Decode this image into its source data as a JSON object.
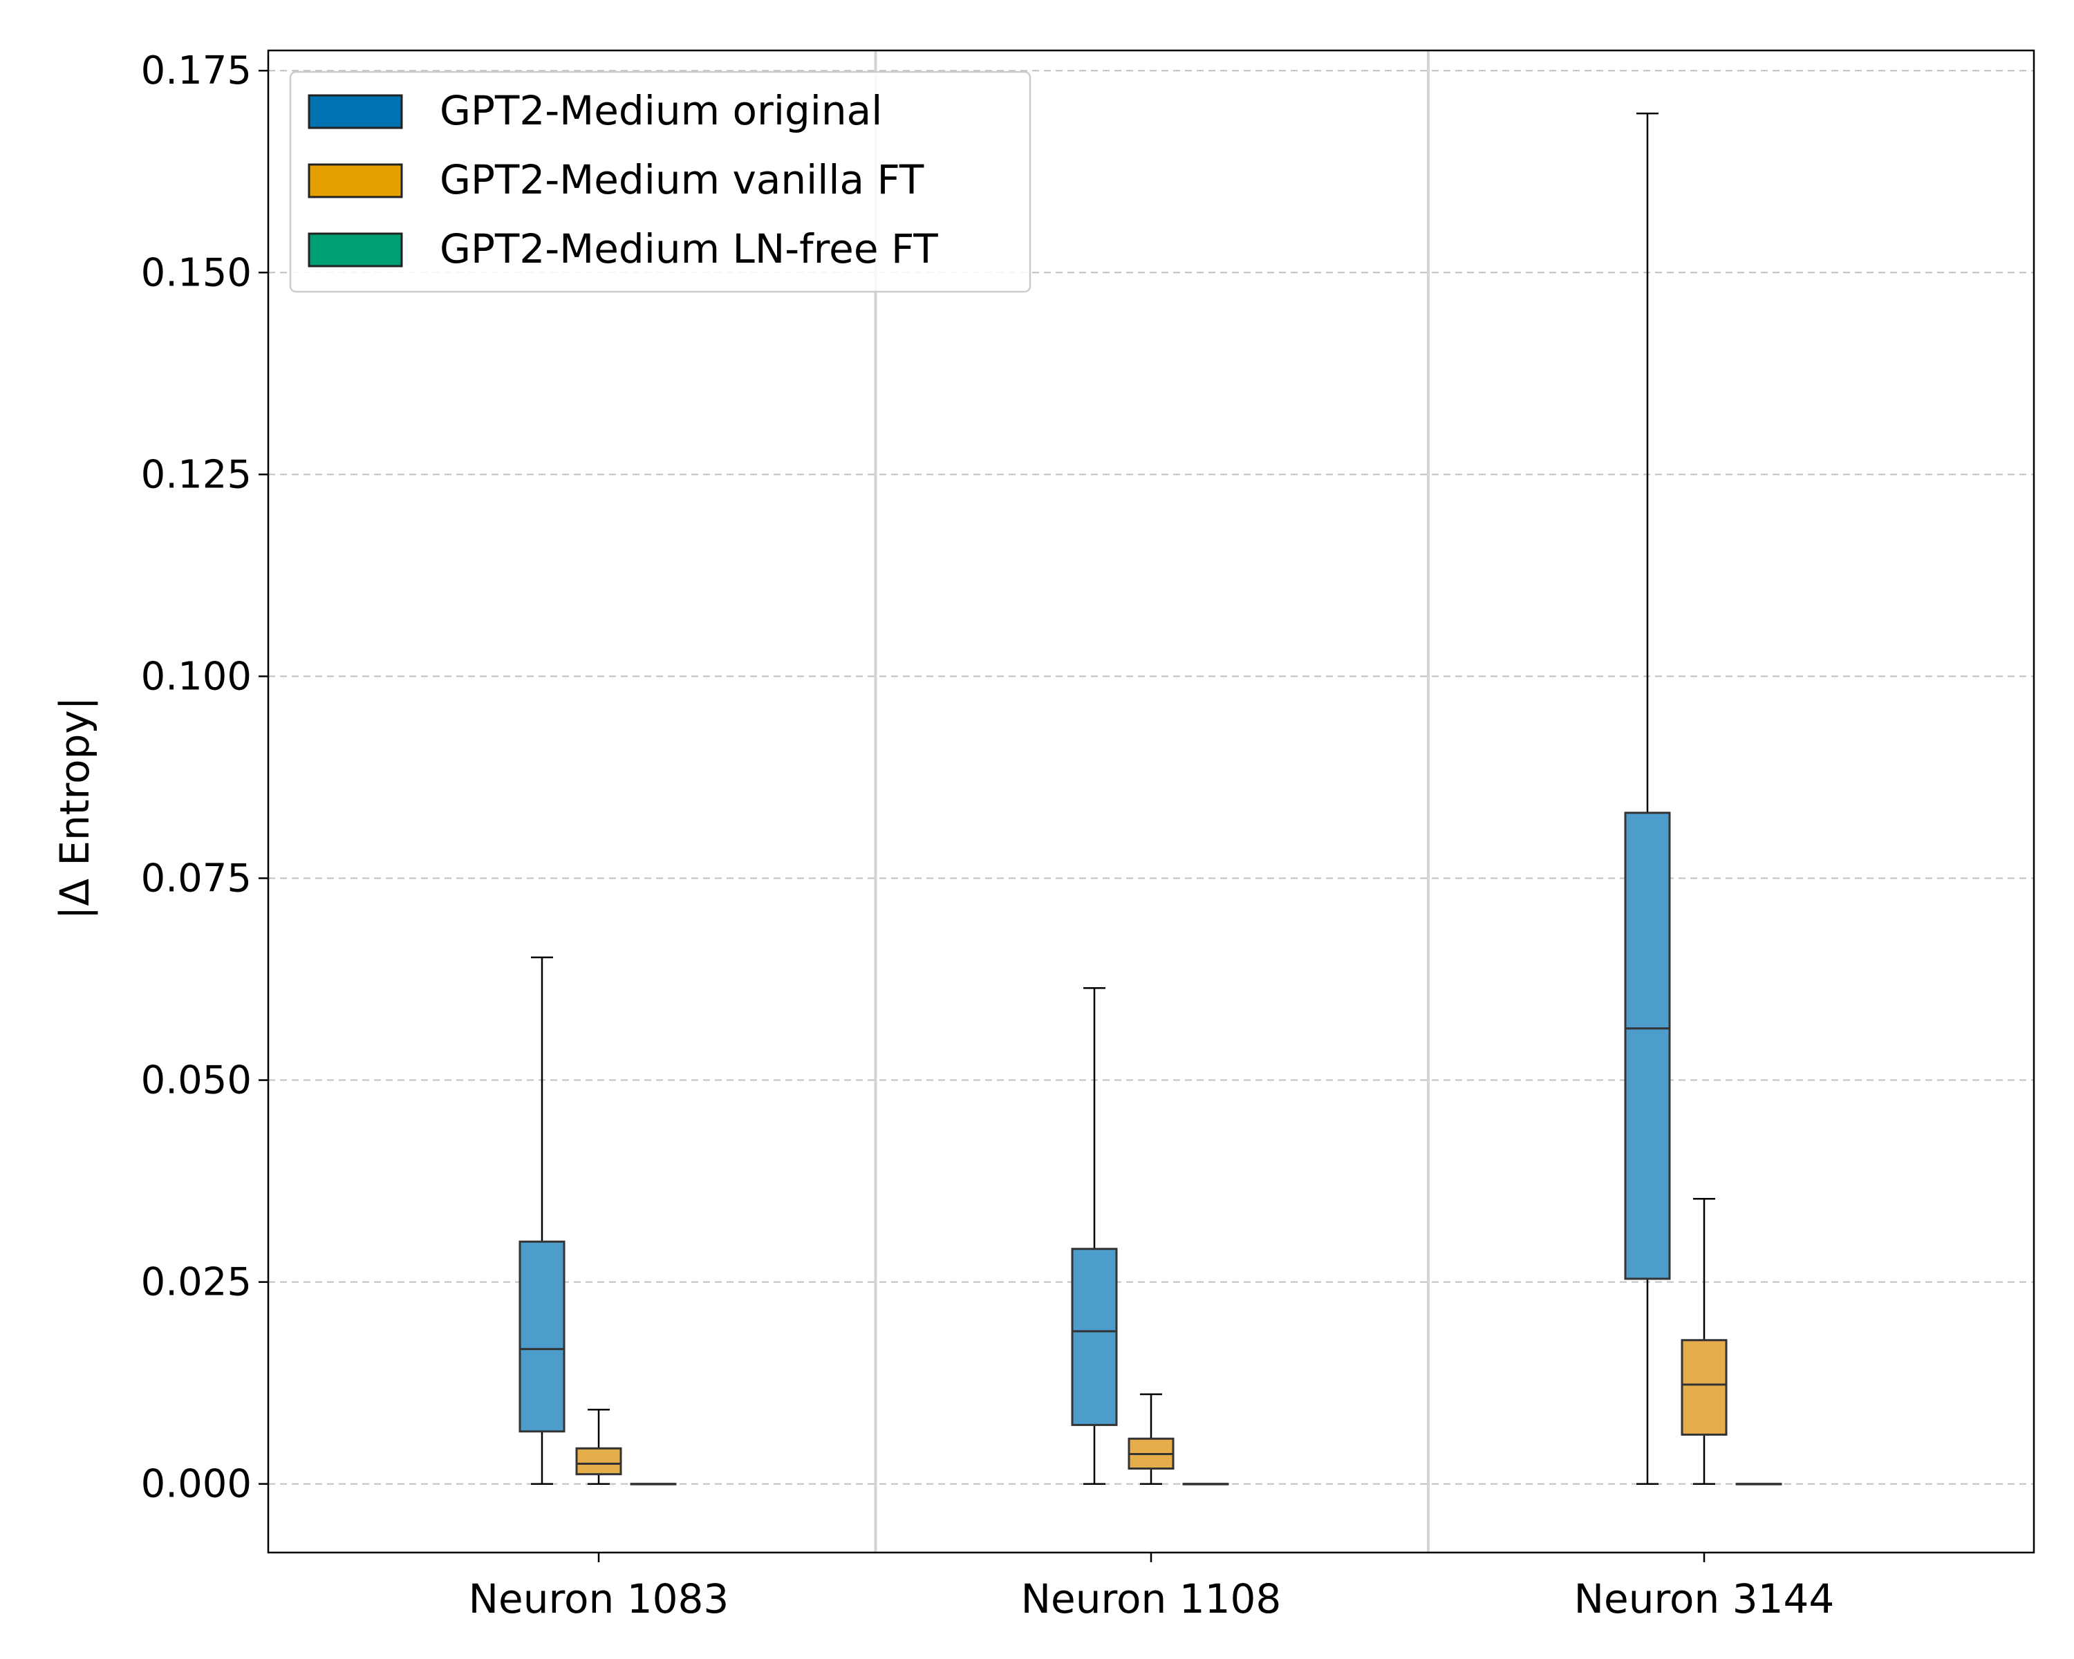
{
  "chart_data": {
    "type": "box",
    "ylabel": "|Δ Entropy|",
    "ylim": [
      -0.0085,
      0.1775
    ],
    "y_ticks": [
      "0.000",
      "0.025",
      "0.050",
      "0.075",
      "0.100",
      "0.125",
      "0.150",
      "0.175"
    ],
    "grid": "y-dashed",
    "legend_placement": "top-left",
    "categories": [
      "Neuron 1083",
      "Neuron 1108",
      "Neuron 3144"
    ],
    "series": [
      {
        "name": "GPT2-Medium original",
        "color": "#0072B2",
        "box_color": "#4c9dcb",
        "boxes": [
          {
            "min": 0.0,
            "q1": 0.0065,
            "median": 0.0167,
            "q3": 0.03,
            "max": 0.0652
          },
          {
            "min": 0.0,
            "q1": 0.0073,
            "median": 0.0189,
            "q3": 0.0291,
            "max": 0.0614
          },
          {
            "min": 0.0,
            "q1": 0.0254,
            "median": 0.0564,
            "q3": 0.0831,
            "max": 0.1697
          }
        ]
      },
      {
        "name": "GPT2-Medium vanilla FT",
        "color": "#E69F00",
        "box_color": "#e6ae4a",
        "boxes": [
          {
            "min": 0.0,
            "q1": 0.0012,
            "median": 0.0025,
            "q3": 0.0044,
            "max": 0.0092
          },
          {
            "min": 0.0,
            "q1": 0.0019,
            "median": 0.0037,
            "q3": 0.0056,
            "max": 0.0111
          },
          {
            "min": 0.0,
            "q1": 0.0061,
            "median": 0.0123,
            "q3": 0.0178,
            "max": 0.0353
          }
        ]
      },
      {
        "name": "GPT2-Medium LN-free FT",
        "color": "#009E73",
        "box_color": "#4cbb9d",
        "boxes": [
          {
            "min": 0.0,
            "q1": 0.0,
            "median": 0.0,
            "q3": 0.0,
            "max": 0.0
          },
          {
            "min": 0.0,
            "q1": 0.0,
            "median": 0.0,
            "q3": 0.0,
            "max": 0.0
          },
          {
            "min": 0.0,
            "q1": 0.0,
            "median": 0.0,
            "q3": 0.0,
            "max": 0.0
          }
        ]
      }
    ]
  }
}
